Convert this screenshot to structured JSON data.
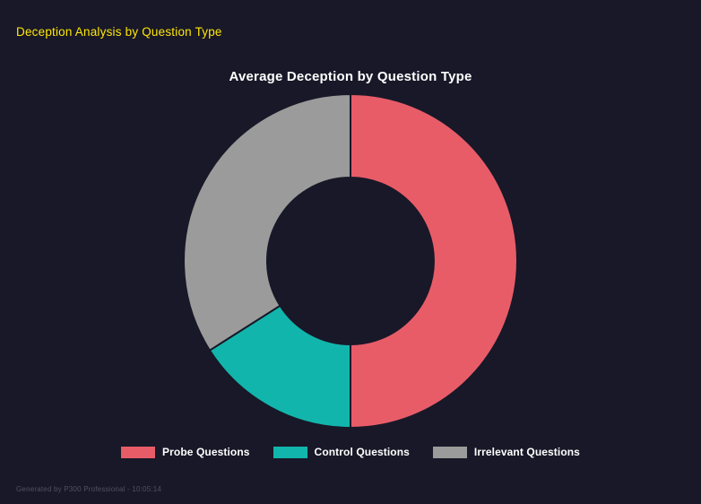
{
  "page": {
    "title": "Deception Analysis by Question Type",
    "footer": "Generated by P300 Professional - 10:05:14"
  },
  "colors": {
    "background": "#181828",
    "heading": "#ffe606",
    "title_text": "#ffffff",
    "legend_text": "#ffffff",
    "footer_text": "#50505f"
  },
  "chart_data": {
    "type": "pie",
    "subtype": "donut",
    "title": "Average Deception by Question Type",
    "cutout_ratio": 0.5,
    "start_angle_deg": 0,
    "direction": "clockwise",
    "labels": [
      "Probe Questions",
      "Control Questions",
      "Irrelevant Questions"
    ],
    "slice_ids": [
      "probe",
      "control",
      "irrelevant"
    ],
    "values": [
      50,
      16,
      34
    ],
    "values_unit": "percent_of_total",
    "colors": [
      "#e85c68",
      "#12b5ab",
      "#9b9b9b"
    ],
    "legend_position": "bottom",
    "grid": false
  }
}
